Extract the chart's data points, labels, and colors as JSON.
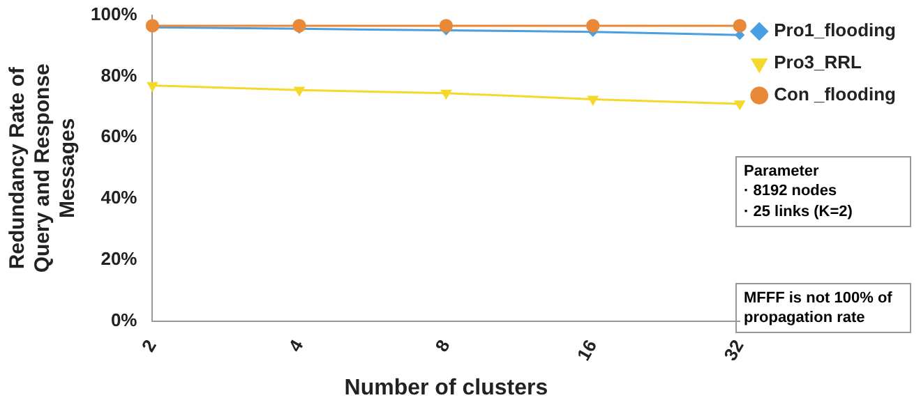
{
  "chart_data": {
    "type": "line",
    "xlabel": "Number of clusters",
    "ylabel": "Redundancy Rate of Query and Response Messages",
    "categories": [
      "2",
      "4",
      "8",
      "16",
      "32"
    ],
    "series": [
      {
        "name": "Pro1_flooding",
        "color": "#4a9fe0",
        "marker": "diamond",
        "values": [
          96,
          95.5,
          95,
          94.5,
          93.5
        ]
      },
      {
        "name": "Pro3_RRL",
        "color": "#f5d92a",
        "marker": "triangle",
        "values": [
          77,
          75.5,
          74.5,
          72.5,
          71
        ]
      },
      {
        "name": "Con _flooding",
        "color": "#e8893a",
        "marker": "circle",
        "values": [
          96.5,
          96.5,
          96.5,
          96.5,
          96.5
        ]
      }
    ],
    "ylim": [
      0,
      100
    ],
    "yticks": [
      {
        "value": 0,
        "label": "0%"
      },
      {
        "value": 20,
        "label": "20%"
      },
      {
        "value": 40,
        "label": "40%"
      },
      {
        "value": 60,
        "label": "60%"
      },
      {
        "value": 80,
        "label": "80%"
      },
      {
        "value": 100,
        "label": "100%"
      }
    ],
    "grid": false,
    "legend": "top right",
    "annotations": [
      "Parameter\n· 8192 nodes\n· 25 links (K=2)",
      "MFFF is not 100% of propagation rate"
    ]
  }
}
